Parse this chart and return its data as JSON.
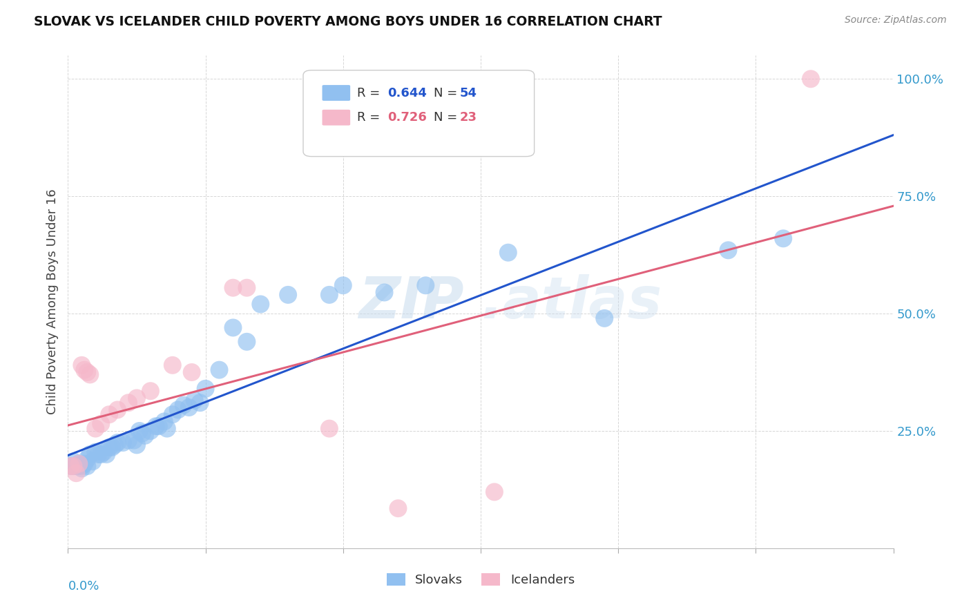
{
  "title": "SLOVAK VS ICELANDER CHILD POVERTY AMONG BOYS UNDER 16 CORRELATION CHART",
  "source": "Source: ZipAtlas.com",
  "ylabel": "Child Poverty Among Boys Under 16",
  "xlim": [
    0.0,
    0.3
  ],
  "ylim": [
    0.0,
    1.05
  ],
  "yticks": [
    0.0,
    0.25,
    0.5,
    0.75,
    1.0
  ],
  "ytick_labels": [
    "",
    "25.0%",
    "50.0%",
    "75.0%",
    "100.0%"
  ],
  "xticks": [
    0.0,
    0.05,
    0.1,
    0.15,
    0.2,
    0.25,
    0.3
  ],
  "slovak_color": "#91C0F0",
  "icelander_color": "#F5B8CA",
  "trendline_slovak_color": "#2255CC",
  "trendline_icelander_color": "#E0607A",
  "watermark_text": "ZIP.atlas",
  "slovak_x": [
    0.001,
    0.002,
    0.002,
    0.003,
    0.004,
    0.004,
    0.005,
    0.005,
    0.006,
    0.007,
    0.007,
    0.008,
    0.009,
    0.01,
    0.011,
    0.012,
    0.013,
    0.014,
    0.015,
    0.016,
    0.017,
    0.018,
    0.02,
    0.022,
    0.024,
    0.025,
    0.026,
    0.027,
    0.028,
    0.03,
    0.032,
    0.033,
    0.035,
    0.036,
    0.038,
    0.04,
    0.042,
    0.044,
    0.046,
    0.048,
    0.05,
    0.055,
    0.06,
    0.065,
    0.07,
    0.08,
    0.095,
    0.1,
    0.115,
    0.13,
    0.16,
    0.195,
    0.24,
    0.26
  ],
  "slovak_y": [
    0.175,
    0.175,
    0.185,
    0.175,
    0.175,
    0.18,
    0.17,
    0.175,
    0.18,
    0.175,
    0.19,
    0.2,
    0.185,
    0.205,
    0.2,
    0.2,
    0.205,
    0.2,
    0.215,
    0.215,
    0.22,
    0.225,
    0.225,
    0.23,
    0.23,
    0.22,
    0.25,
    0.245,
    0.24,
    0.25,
    0.26,
    0.26,
    0.27,
    0.255,
    0.285,
    0.295,
    0.305,
    0.3,
    0.315,
    0.31,
    0.34,
    0.38,
    0.47,
    0.44,
    0.52,
    0.54,
    0.54,
    0.56,
    0.545,
    0.56,
    0.63,
    0.49,
    0.635,
    0.66
  ],
  "icelander_x": [
    0.001,
    0.002,
    0.003,
    0.004,
    0.005,
    0.006,
    0.007,
    0.008,
    0.01,
    0.012,
    0.015,
    0.018,
    0.022,
    0.025,
    0.03,
    0.038,
    0.045,
    0.06,
    0.065,
    0.095,
    0.12,
    0.155,
    0.27
  ],
  "icelander_y": [
    0.175,
    0.175,
    0.16,
    0.18,
    0.39,
    0.38,
    0.375,
    0.37,
    0.255,
    0.265,
    0.285,
    0.295,
    0.31,
    0.32,
    0.335,
    0.39,
    0.375,
    0.555,
    0.555,
    0.255,
    0.085,
    0.12,
    1.0
  ]
}
